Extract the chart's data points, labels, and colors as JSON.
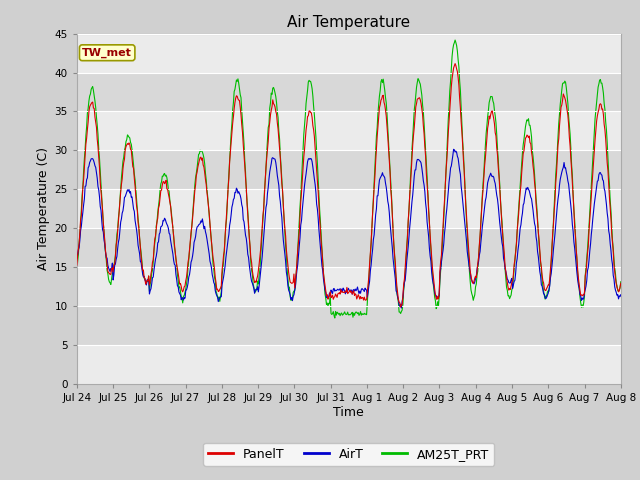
{
  "title": "Air Temperature",
  "xlabel": "Time",
  "ylabel": "Air Temperature (C)",
  "ylim": [
    0,
    45
  ],
  "yticks": [
    0,
    5,
    10,
    15,
    20,
    25,
    30,
    35,
    40,
    45
  ],
  "annotation_label": "TW_met",
  "annotation_color": "#990000",
  "annotation_bg": "#ffffcc",
  "annotation_border": "#999900",
  "legend_labels": [
    "PanelT",
    "AirT",
    "AM25T_PRT"
  ],
  "panel_color": "#dd0000",
  "air_color": "#0000cc",
  "am25t_color": "#00bb00",
  "fig_bg": "#d0d0d0",
  "plot_bg": "#e8e8e8",
  "band_light": "#ebebeb",
  "band_dark": "#d8d8d8",
  "num_days": 15,
  "date_labels": [
    "Jul 24",
    "Jul 25",
    "Jul 26",
    "Jul 27",
    "Jul 28",
    "Jul 29",
    "Jul 30",
    "Jul 31",
    "Aug 1",
    "Aug 2",
    "Aug 3",
    "Aug 4",
    "Aug 5",
    "Aug 6",
    "Aug 7",
    "Aug 8"
  ],
  "panel_peaks": [
    36,
    31,
    26,
    29,
    37,
    36,
    35,
    12,
    37,
    37,
    41,
    35,
    32,
    37,
    36
  ],
  "air_peaks": [
    29,
    25,
    21,
    21,
    25,
    29,
    29,
    12,
    27,
    29,
    30,
    27,
    25,
    28,
    27
  ],
  "am25t_peaks": [
    38,
    32,
    27,
    30,
    39,
    38,
    39,
    9,
    39,
    39,
    44,
    37,
    34,
    39,
    39
  ],
  "panel_valleys": [
    14,
    13,
    12,
    12,
    13,
    13,
    11,
    11,
    10,
    11,
    13,
    12,
    12,
    11,
    12
  ],
  "air_valleys": [
    15,
    13,
    11,
    11,
    12,
    11,
    11,
    12,
    10,
    11,
    13,
    13,
    11,
    11,
    11
  ],
  "am25t_valleys": [
    13,
    13,
    11,
    11,
    12,
    11,
    10,
    9,
    9,
    10,
    11,
    11,
    11,
    10,
    12
  ]
}
